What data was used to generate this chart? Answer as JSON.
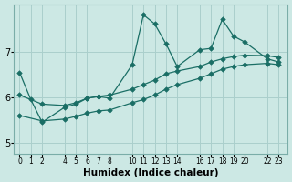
{
  "xlabel": "Humidex (Indice chaleur)",
  "bg_color": "#cce8e4",
  "line_color": "#1a6e65",
  "grid_color": "#aacfcc",
  "xlim": [
    -0.5,
    23.8
  ],
  "ylim": [
    4.75,
    8.05
  ],
  "xticks": [
    0,
    1,
    2,
    4,
    5,
    6,
    7,
    8,
    10,
    11,
    12,
    13,
    14,
    16,
    17,
    18,
    19,
    20,
    22,
    23
  ],
  "yticks": [
    5,
    6,
    7
  ],
  "line1_x": [
    0,
    1,
    2,
    4,
    5,
    6,
    7,
    8,
    10,
    11,
    12,
    13,
    14,
    16,
    17,
    18,
    19,
    20,
    22,
    23
  ],
  "line1_y": [
    6.55,
    5.95,
    5.45,
    5.78,
    5.85,
    5.98,
    6.02,
    5.98,
    6.72,
    7.82,
    7.62,
    7.18,
    6.68,
    7.05,
    7.08,
    7.72,
    7.35,
    7.22,
    6.85,
    6.78
  ],
  "line2_x": [
    0,
    2,
    4,
    5,
    6,
    7,
    8,
    10,
    11,
    12,
    13,
    14,
    16,
    17,
    18,
    19,
    20,
    22,
    23
  ],
  "line2_y": [
    6.05,
    5.85,
    5.82,
    5.88,
    5.98,
    6.02,
    6.05,
    6.18,
    6.28,
    6.38,
    6.52,
    6.58,
    6.68,
    6.78,
    6.85,
    6.9,
    6.93,
    6.92,
    6.88
  ],
  "line3_x": [
    0,
    2,
    4,
    5,
    6,
    7,
    8,
    10,
    11,
    12,
    13,
    14,
    16,
    17,
    18,
    19,
    20,
    22,
    23
  ],
  "line3_y": [
    5.6,
    5.48,
    5.52,
    5.58,
    5.65,
    5.7,
    5.72,
    5.88,
    5.95,
    6.05,
    6.18,
    6.28,
    6.42,
    6.52,
    6.62,
    6.68,
    6.72,
    6.75,
    6.72
  ]
}
